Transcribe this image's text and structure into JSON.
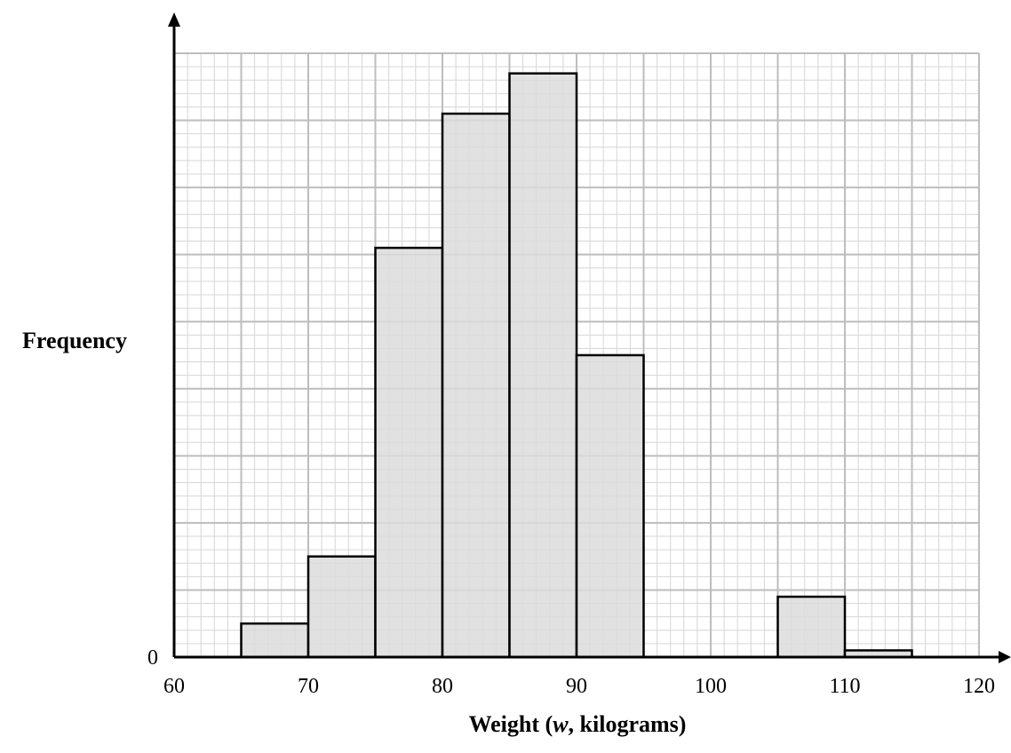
{
  "chart_data": {
    "type": "bar",
    "subtype": "histogram",
    "title": "",
    "xlabel": "Weight (w, kilograms)",
    "xlabel_parts": {
      "before": "Weight (",
      "italic": "w",
      "after": ", kilograms)"
    },
    "ylabel": "Frequency",
    "xlim": [
      60,
      120
    ],
    "ylim": [
      0,
      9
    ],
    "x_ticks": [
      60,
      70,
      80,
      90,
      100,
      110,
      120
    ],
    "y_ticks": [
      0
    ],
    "y_tick_labels": [
      "0"
    ],
    "grid": true,
    "bins": [
      {
        "from": 65,
        "to": 70,
        "value": 0.5
      },
      {
        "from": 70,
        "to": 75,
        "value": 1.5
      },
      {
        "from": 75,
        "to": 80,
        "value": 6.1
      },
      {
        "from": 80,
        "to": 85,
        "value": 8.1
      },
      {
        "from": 85,
        "to": 90,
        "value": 8.7
      },
      {
        "from": 90,
        "to": 95,
        "value": 4.5
      },
      {
        "from": 105,
        "to": 110,
        "value": 0.9
      },
      {
        "from": 110,
        "to": 115,
        "value": 0.1
      }
    ],
    "bar_color": "#dcdcdc",
    "bar_edge_color": "#000000",
    "grid_major_color": "#bdbdbd",
    "grid_minor_color": "#d6d6d6"
  }
}
